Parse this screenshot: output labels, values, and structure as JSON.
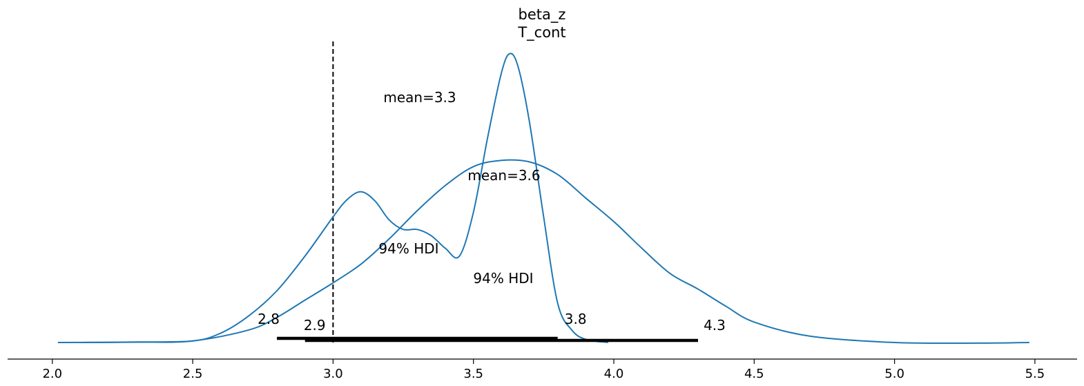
{
  "chart_data": {
    "type": "line",
    "title_lines": [
      "beta_z",
      "T_cont"
    ],
    "xlabel": "",
    "ylabel": "",
    "xlim": [
      1.85,
      5.65
    ],
    "xticks": [
      2.0,
      2.5,
      3.0,
      3.5,
      4.0,
      4.5,
      5.0,
      5.5
    ],
    "xtick_labels": [
      "2.0",
      "2.5",
      "3.0",
      "3.5",
      "4.0",
      "4.5",
      "5.0",
      "5.5"
    ],
    "reference_line": {
      "x": 3.0,
      "style": "dashed"
    },
    "series": [
      {
        "color": "#1f77b4",
        "x": [
          2.1,
          2.3,
          2.5,
          2.6,
          2.7,
          2.8,
          2.9,
          3.0,
          3.05,
          3.1,
          3.15,
          3.2,
          3.25,
          3.3,
          3.35,
          3.4,
          3.45,
          3.5,
          3.55,
          3.6,
          3.63,
          3.66,
          3.7,
          3.75,
          3.8,
          3.85,
          3.9,
          3.98
        ],
        "density": [
          0.0,
          0.003,
          0.01,
          0.06,
          0.17,
          0.33,
          0.55,
          0.8,
          0.91,
          0.96,
          0.9,
          0.78,
          0.72,
          0.72,
          0.68,
          0.6,
          0.55,
          0.83,
          1.3,
          1.72,
          1.84,
          1.75,
          1.4,
          0.8,
          0.25,
          0.08,
          0.02,
          0.0
        ],
        "mean_label": "mean=3.3",
        "hdi_label": "94% HDI",
        "hdi_low": 2.8,
        "hdi_high": 3.8,
        "hdi_low_label": "2.8",
        "hdi_high_label": "3.8"
      },
      {
        "color": "#1f77b4",
        "x": [
          2.02,
          2.3,
          2.5,
          2.7,
          2.8,
          2.9,
          3.0,
          3.1,
          3.2,
          3.3,
          3.4,
          3.5,
          3.6,
          3.7,
          3.8,
          3.9,
          4.0,
          4.1,
          4.2,
          4.3,
          4.4,
          4.5,
          4.7,
          5.0,
          5.3,
          5.48
        ],
        "density": [
          0.0,
          0.002,
          0.01,
          0.08,
          0.16,
          0.27,
          0.38,
          0.5,
          0.66,
          0.84,
          1.0,
          1.12,
          1.16,
          1.15,
          1.07,
          0.92,
          0.77,
          0.6,
          0.44,
          0.34,
          0.23,
          0.13,
          0.04,
          0.0,
          -0.004,
          0.0
        ],
        "mean_label": "mean=3.6",
        "hdi_label": "94% HDI",
        "hdi_low": 2.9,
        "hdi_high": 4.3,
        "hdi_low_label": "2.9",
        "hdi_high_label": "4.3"
      }
    ],
    "grid": false,
    "legend": "none"
  }
}
